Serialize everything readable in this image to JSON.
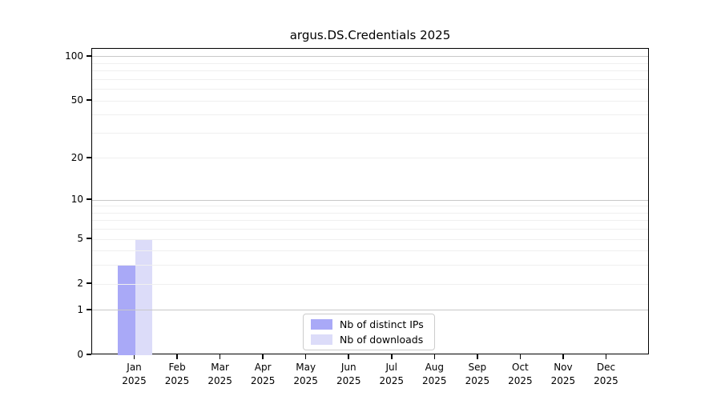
{
  "chart_data": {
    "type": "bar",
    "title": "argus.DS.Credentials 2025",
    "categories": [
      "Jan",
      "Feb",
      "Mar",
      "Apr",
      "May",
      "Jun",
      "Jul",
      "Aug",
      "Sep",
      "Oct",
      "Nov",
      "Dec"
    ],
    "category_year": "2025",
    "series": [
      {
        "name": "Nb of distinct IPs",
        "color": "#a9a9f7",
        "values": [
          3,
          0,
          0,
          0,
          0,
          0,
          0,
          0,
          0,
          0,
          0,
          0
        ]
      },
      {
        "name": "Nb of downloads",
        "color": "#dcdcf9",
        "values": [
          5,
          0,
          0,
          0,
          0,
          0,
          0,
          0,
          0,
          0,
          0,
          0
        ]
      }
    ],
    "xlabel": "",
    "ylabel": "",
    "y_scale": "log1p",
    "ylim": [
      0,
      113
    ],
    "xlim": [
      -1,
      12
    ],
    "y_ticks": [
      0,
      1,
      2,
      5,
      10,
      20,
      50,
      100
    ],
    "y_major_gridlines": [
      1,
      10,
      100
    ],
    "y_minor_gridlines": [
      2,
      3,
      4,
      5,
      6,
      7,
      8,
      9,
      20,
      30,
      40,
      50,
      60,
      70,
      80,
      90
    ],
    "grid": true,
    "bar_width_units": 0.4,
    "legend_position": "lower center",
    "colors": {
      "major_grid": "#c8c8c8",
      "minor_grid": "#f0f0f0",
      "axis": "#000000",
      "background": "#ffffff"
    }
  }
}
